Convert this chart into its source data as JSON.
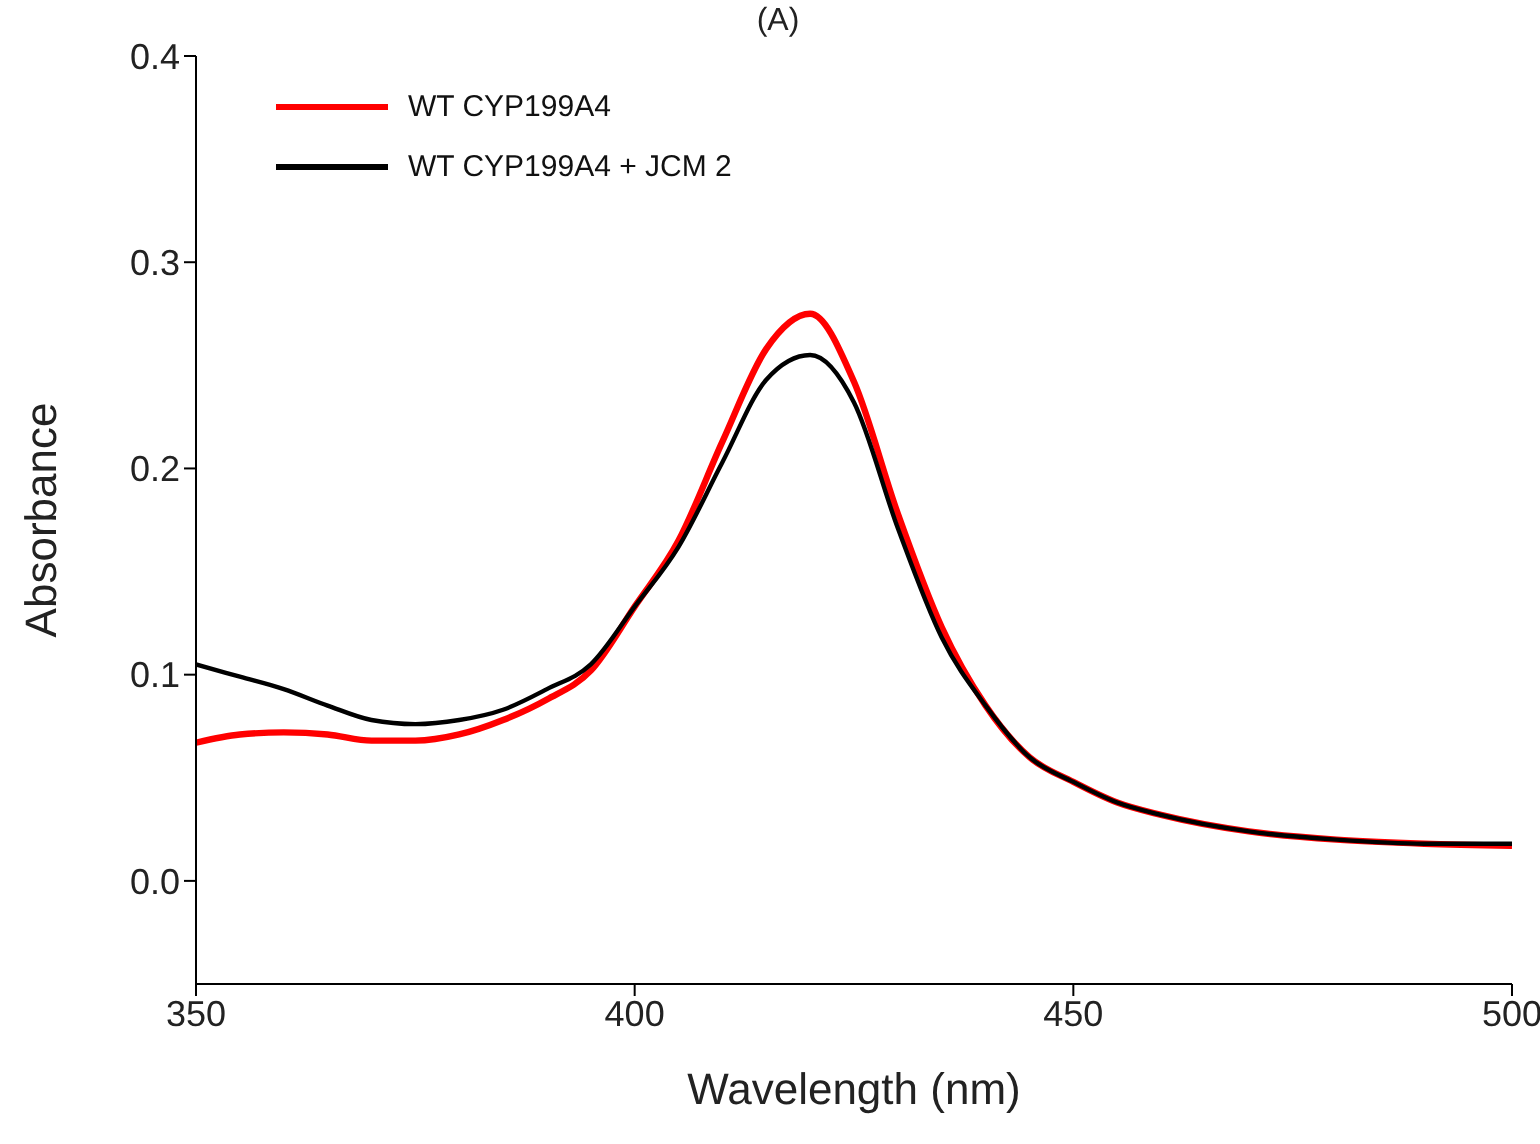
{
  "chart_data": {
    "type": "line",
    "title": "(A)",
    "xlabel": "Wavelength (nm)",
    "ylabel": "Absorbance",
    "x": [
      350,
      355,
      360,
      365,
      370,
      375,
      380,
      385,
      390,
      395,
      400,
      405,
      410,
      415,
      420,
      425,
      430,
      435,
      440,
      445,
      450,
      455,
      460,
      470,
      480,
      490,
      500
    ],
    "series": [
      {
        "name": "WT CYP199A4",
        "color": "#ff0000",
        "values": [
          0.067,
          0.071,
          0.072,
          0.071,
          0.068,
          0.068,
          0.071,
          0.078,
          0.088,
          0.102,
          0.133,
          0.165,
          0.213,
          0.258,
          0.275,
          0.242,
          0.178,
          0.123,
          0.085,
          0.06,
          0.048,
          0.038,
          0.032,
          0.024,
          0.02,
          0.018,
          0.017
        ]
      },
      {
        "name": "WT CYP199A4 + JCM 2",
        "color": "#000000",
        "values": [
          0.105,
          0.099,
          0.093,
          0.085,
          0.078,
          0.076,
          0.078,
          0.083,
          0.093,
          0.105,
          0.133,
          0.162,
          0.203,
          0.243,
          0.255,
          0.232,
          0.171,
          0.118,
          0.085,
          0.06,
          0.048,
          0.038,
          0.032,
          0.024,
          0.02,
          0.018,
          0.018
        ]
      }
    ],
    "xlim": [
      350,
      500
    ],
    "xticks": [
      350,
      400,
      450,
      500
    ],
    "ylim": [
      -0.05,
      0.4
    ],
    "yticks": [
      {
        "value": 0,
        "label": "0.0"
      },
      {
        "value": 0.1,
        "label": "0.1"
      },
      {
        "value": 0.2,
        "label": "0.2"
      },
      {
        "value": 0.3,
        "label": "0.3"
      },
      {
        "value": 0.4,
        "label": "0.4"
      }
    ],
    "legend": "top left",
    "grid": false,
    "marker": "none",
    "line_style": "solid"
  }
}
